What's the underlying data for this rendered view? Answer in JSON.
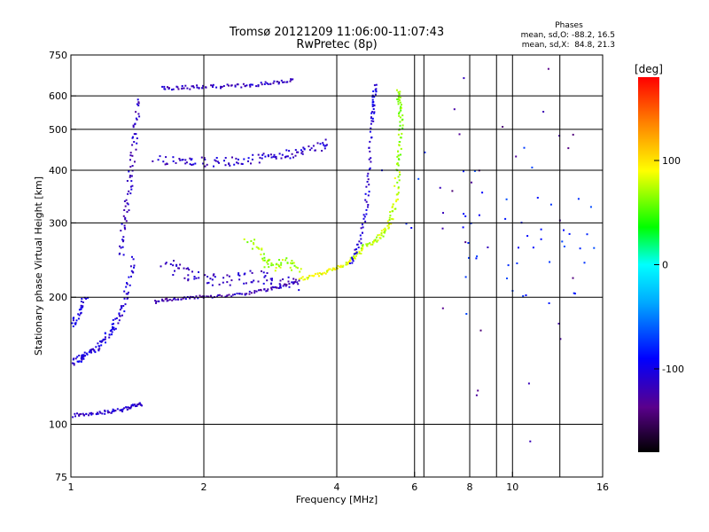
{
  "chart_data": {
    "type": "scatter",
    "title": "Tromsø 20121209 11:06:00-11:07:43",
    "subtitle": "RwPretec (8p)",
    "xlabel": "Frequency [MHz]",
    "ylabel": "Stationary phase Virtual Height [km]",
    "x_scale": "log",
    "y_scale": "log",
    "xlim": [
      1,
      16
    ],
    "ylim": [
      75,
      750
    ],
    "x_ticks": [
      {
        "value": 1,
        "label": "1"
      },
      {
        "value": 2,
        "label": "2"
      },
      {
        "value": 4,
        "label": "4"
      },
      {
        "value": 6,
        "label": "6"
      },
      {
        "value": 8,
        "label": "8"
      },
      {
        "value": 10,
        "label": "10"
      },
      {
        "value": 16,
        "label": "16"
      }
    ],
    "y_ticks": [
      {
        "value": 75,
        "label": "75"
      },
      {
        "value": 100,
        "label": "100"
      },
      {
        "value": 200,
        "label": "200"
      },
      {
        "value": 300,
        "label": "300"
      },
      {
        "value": 400,
        "label": "400"
      },
      {
        "value": 500,
        "label": "500"
      },
      {
        "value": 600,
        "label": "600"
      },
      {
        "value": 750,
        "label": "750"
      }
    ],
    "x_gridlines": [
      2,
      4,
      6,
      8,
      10
    ],
    "x_extra_gridlines": [
      6.3,
      9.2,
      12.8
    ],
    "y_gridlines": [
      100,
      200,
      300,
      400,
      500,
      600
    ],
    "stats": {
      "heading": "Phases",
      "line1": "mean, sd,O: -88.2, 16.5",
      "line2": "mean, sd,X:  84.8, 21.3"
    },
    "colorbar": {
      "unit": "[deg]",
      "range": [
        -180,
        180
      ],
      "ticks": [
        {
          "value": 100,
          "label": "100"
        },
        {
          "value": 0,
          "label": "0"
        },
        {
          "value": -100,
          "label": "-100"
        }
      ]
    },
    "traces": [
      {
        "x": [
          1.0,
          1.05,
          1.1,
          1.15,
          1.2,
          1.25,
          1.3,
          1.35,
          1.38
        ],
        "y": [
          140,
          143,
          148,
          152,
          160,
          170,
          185,
          210,
          250
        ],
        "phase": -105,
        "spread": 0.03
      },
      {
        "x": [
          1.3,
          1.32,
          1.35,
          1.38,
          1.4,
          1.42
        ],
        "y": [
          250,
          300,
          350,
          420,
          500,
          600
        ],
        "phase": -115,
        "spread": 0.03
      },
      {
        "x": [
          1.0,
          1.04,
          1.08
        ],
        "y": [
          170,
          185,
          200
        ],
        "phase": -105,
        "spread": 0.03
      },
      {
        "x": [
          1.0,
          1.1,
          1.2,
          1.3,
          1.38,
          1.45
        ],
        "y": [
          105,
          106,
          107,
          108,
          110,
          112
        ],
        "phase": -110,
        "spread": 0.02
      },
      {
        "x": [
          1.55,
          1.7,
          1.9,
          2.1,
          2.4,
          2.7,
          3.0,
          3.3
        ],
        "y": [
          195,
          198,
          200,
          201,
          203,
          207,
          212,
          220
        ],
        "phase": -120,
        "spread": 0.015
      },
      {
        "x": [
          3.3,
          3.6,
          3.9,
          4.2,
          4.4,
          4.6
        ],
        "y": [
          220,
          226,
          232,
          240,
          250,
          262
        ],
        "phase": 85,
        "spread": 0.02
      },
      {
        "x": [
          4.6,
          4.9,
          5.1,
          5.3,
          5.45,
          5.5
        ],
        "y": [
          262,
          272,
          285,
          305,
          340,
          400
        ],
        "phase": 75,
        "spread": 0.025
      },
      {
        "x": [
          5.5,
          5.55,
          5.6,
          5.55,
          5.5
        ],
        "y": [
          400,
          450,
          520,
          580,
          620
        ],
        "phase": 65,
        "spread": 0.02
      },
      {
        "x": [
          4.3,
          4.5,
          4.65,
          4.75,
          4.8
        ],
        "y": [
          240,
          270,
          320,
          400,
          520
        ],
        "phase": -110,
        "spread": 0.02
      },
      {
        "x": [
          4.8,
          4.85,
          4.9
        ],
        "y": [
          520,
          580,
          640
        ],
        "phase": -100,
        "spread": 0.02
      },
      {
        "x": [
          1.55,
          1.8,
          2.0,
          2.3,
          2.6,
          2.9,
          3.2,
          3.5,
          3.9
        ],
        "y": [
          425,
          420,
          418,
          420,
          425,
          430,
          438,
          448,
          462
        ],
        "phase": -110,
        "spread": 0.05
      },
      {
        "x": [
          1.6,
          1.8,
          2.0,
          2.3,
          2.6,
          2.9,
          3.2
        ],
        "y": [
          625,
          628,
          630,
          632,
          636,
          645,
          655
        ],
        "phase": -115,
        "spread": 0.02
      },
      {
        "x": [
          1.6,
          1.8,
          2.0,
          2.3,
          2.6,
          2.9,
          3.2
        ],
        "y": [
          240,
          230,
          222,
          220,
          224,
          218,
          215
        ],
        "phase": -115,
        "spread": 0.07
      },
      {
        "x": [
          2.5,
          2.7,
          2.9,
          3.1,
          3.3
        ],
        "y": [
          275,
          250,
          235,
          245,
          230
        ],
        "phase": 70,
        "spread": 0.05
      },
      {
        "x": [
          6.3,
          9.3,
          9.8,
          13.0,
          15.5
        ],
        "y": [
          300,
          350,
          200,
          280,
          250
        ],
        "phase": -80,
        "spread": 0.6
      },
      {
        "x": [
          9.9,
          10.0,
          10.1
        ],
        "y": [
          100,
          400,
          600
        ],
        "phase": -130,
        "spread": 0.8
      }
    ]
  }
}
